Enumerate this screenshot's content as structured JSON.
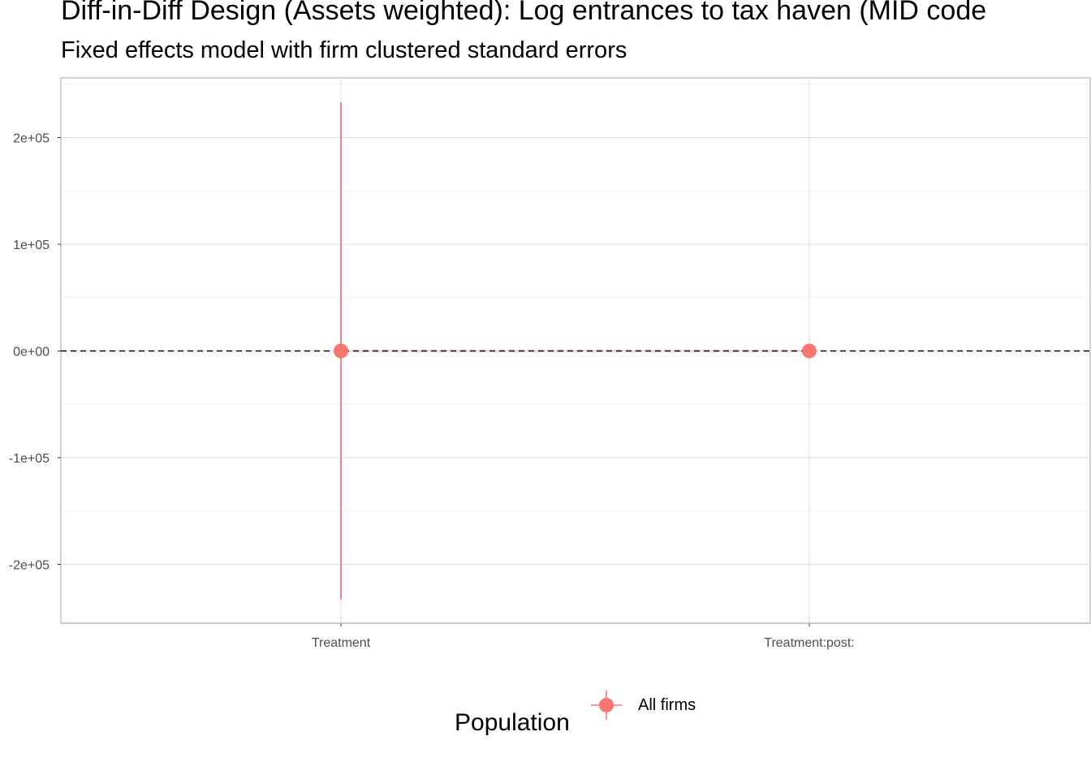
{
  "title": "Diff-in-Diff Design (Assets weighted): Log entrances to tax haven (MID code",
  "subtitle": "Fixed effects model with firm clustered standard errors",
  "chart_data": {
    "type": "scatter",
    "categories": [
      "Treatment",
      "Treatment:post:"
    ],
    "series": [
      {
        "name": "All firms",
        "color": "#F8766D",
        "estimate": [
          0,
          0
        ],
        "ci_low": [
          -233000,
          -500
        ],
        "ci_high": [
          233000,
          500
        ]
      }
    ],
    "y_ticks": [
      -200000,
      -100000,
      0,
      100000,
      200000
    ],
    "y_tick_labels": [
      "-2e+05",
      "-1e+05",
      "0e+00",
      "1e+05",
      "2e+05"
    ],
    "ylim": [
      -256000,
      256000
    ],
    "reference_line": {
      "y": 0,
      "style": "dashed",
      "color": "#000000"
    },
    "grid": true,
    "legend": {
      "title": "Population",
      "position": "bottom",
      "entries": [
        "All firms"
      ]
    },
    "xlabel": "",
    "ylabel": ""
  }
}
